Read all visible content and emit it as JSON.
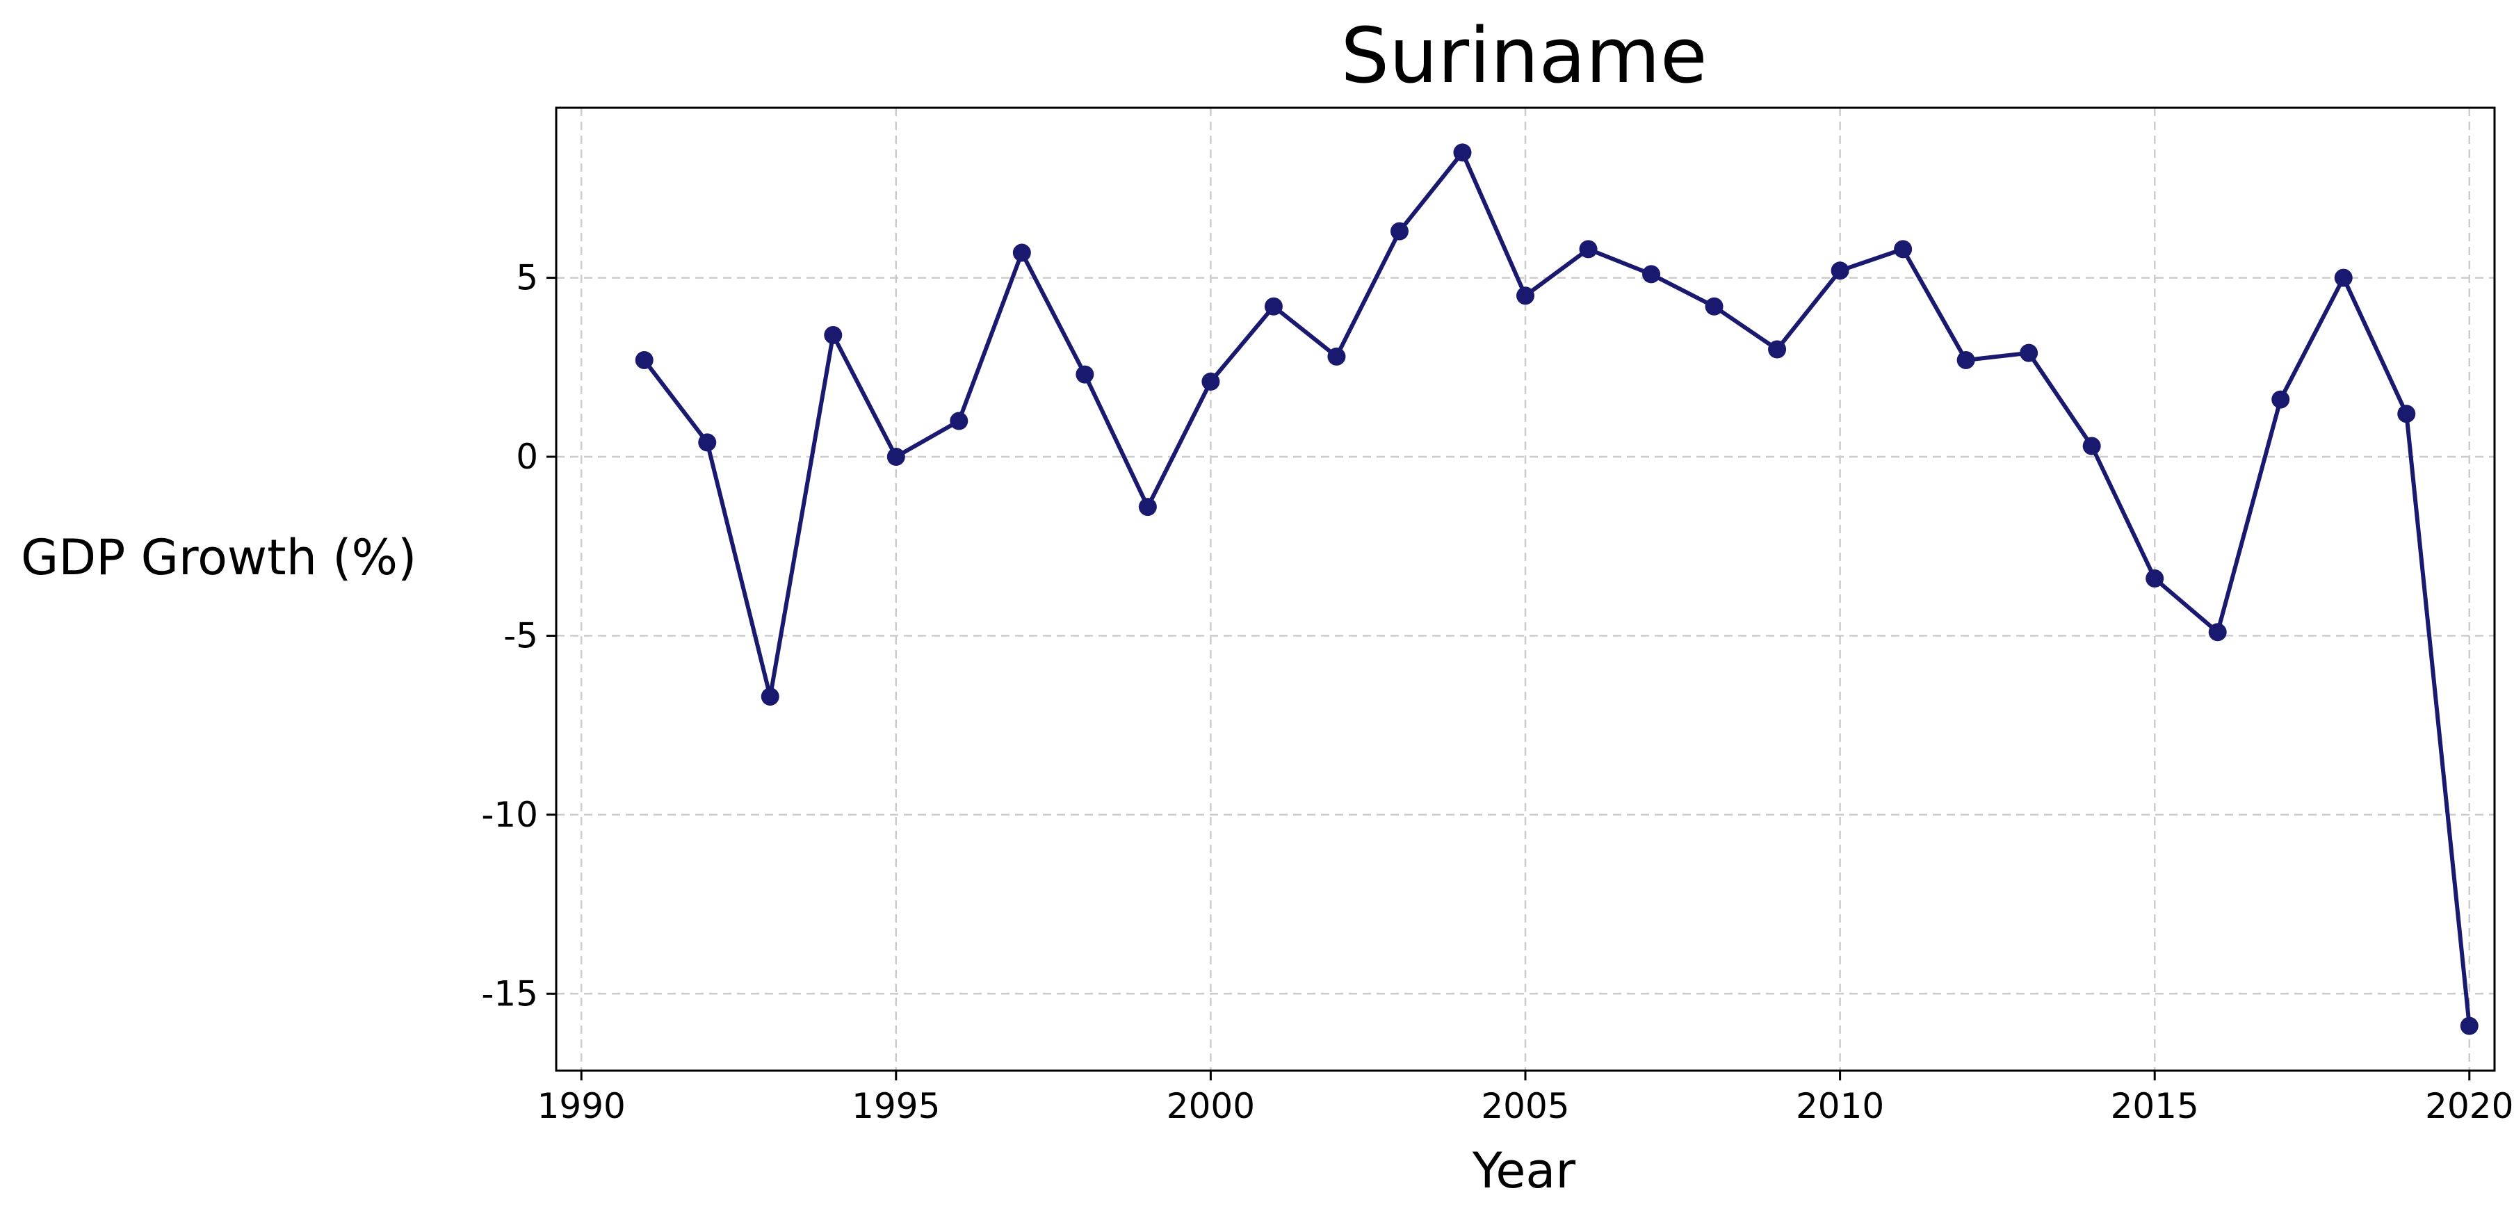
{
  "chart_data": {
    "type": "line",
    "title": "Suriname",
    "xlabel": "Year",
    "ylabel": "GDP Growth (%)",
    "xlim": [
      1989.6,
      2020.4
    ],
    "ylim": [
      -17.15,
      9.75
    ],
    "xticks": [
      1990,
      1995,
      2000,
      2005,
      2010,
      2015,
      2020
    ],
    "yticks": [
      -15,
      -10,
      -5,
      0,
      5
    ],
    "grid": true,
    "legend": "none",
    "colors": {
      "line": "#191970",
      "marker": "#191970",
      "grid": "#cccccc",
      "frame": "#000000"
    },
    "series": [
      {
        "x": [
          1991,
          1992,
          1993,
          1994,
          1995,
          1996,
          1997,
          1998,
          1999,
          2000,
          2001,
          2002,
          2003,
          2004,
          2005,
          2006,
          2007,
          2008,
          2009,
          2010,
          2011,
          2012,
          2013,
          2014,
          2015,
          2016,
          2017,
          2018,
          2019,
          2020
        ],
        "values": [
          2.7,
          0.4,
          -6.7,
          3.4,
          0.0,
          1.0,
          5.7,
          2.3,
          -1.4,
          2.1,
          4.2,
          2.8,
          6.3,
          8.5,
          4.5,
          5.8,
          5.1,
          4.2,
          3.0,
          5.2,
          5.8,
          2.7,
          2.9,
          0.3,
          -3.4,
          -4.9,
          1.6,
          5.0,
          1.2,
          -15.9
        ]
      }
    ]
  }
}
